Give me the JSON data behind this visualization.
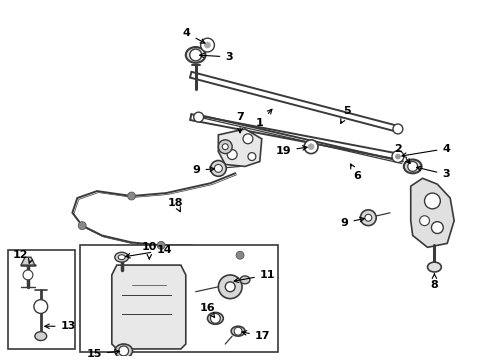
{
  "background_color": "#ffffff",
  "line_color": "#3a3a3a",
  "fig_width": 4.89,
  "fig_height": 3.6,
  "dpi": 100,
  "label_fs": 8,
  "lw_thick": 2.2,
  "lw_mid": 1.4,
  "lw_thin": 0.9
}
